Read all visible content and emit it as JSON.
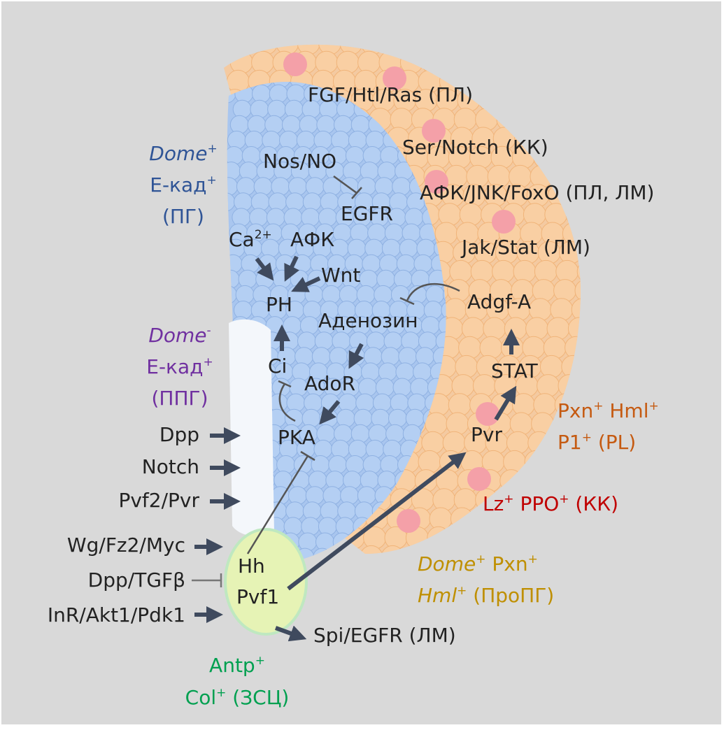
{
  "colors": {
    "background": "#d9d9d9",
    "arrow": "#3f4a5e",
    "inhibit": "#666666",
    "ph_zone": "#2f5496",
    "pph_zone": "#7030a0",
    "plasmatocyte": "#c55a11",
    "crystal_cell": "#c00000",
    "progenitor": "#bf8f00",
    "niche": "#00a050"
  },
  "pathways_outer": {
    "fgf": "FGF/Htl/Ras (ПЛ)",
    "notch": "Ser/Notch (КК)",
    "ros": "АФК/JNK/FoxO (ПЛ, ЛМ)",
    "jak": "Jak/Stat (ЛМ)"
  },
  "zones": {
    "ph": {
      "line1": "Dome",
      "line1_sup": "+",
      "line2": "Е-кад",
      "line2_sup": "+",
      "line3": "(ПГ)"
    },
    "pph": {
      "line1": "Dome",
      "line1_sup": "-",
      "line2": "Е-кад",
      "line2_sup": "+",
      "line3": "(ППГ)"
    },
    "pl": {
      "a": "Pxn",
      "a_sup": "+",
      "b": "Hml",
      "b_sup": "+",
      "c": "P1",
      "c_sup": "+",
      "d": "(PL)"
    },
    "cc": {
      "a": "Lz",
      "a_sup": "+",
      "b": "PPO",
      "b_sup": "+",
      "c": "(КК)"
    },
    "proph": {
      "a": "Dome",
      "a_sup": "+",
      "b": "Pxn",
      "b_sup": "+",
      "c": "Hml",
      "c_sup": "+",
      "d": "(ПроПГ)"
    },
    "niche": {
      "a": "Antp",
      "a_sup": "+",
      "b": "Col",
      "b_sup": "+",
      "c": "(ЗСЦ)"
    }
  },
  "nodes": {
    "nos": "Nos/NO",
    "egfr": "EGFR",
    "ca": "Ca",
    "ca_sup": "2+",
    "afk": "АФК",
    "wnt": "Wnt",
    "ph": "PH",
    "adenosine": "Аденозин",
    "adgf": "Adgf-A",
    "ci": "Ci",
    "stat": "STAT",
    "ador": "AdoR",
    "pka": "PKA",
    "pvr": "Pvr",
    "hh": "Hh",
    "pvf1": "Pvf1",
    "spi": "Spi/EGFR (ЛМ)"
  },
  "inputs_left": {
    "dpp": "Dpp",
    "notch": "Notch",
    "pvf2": "Pvf2/Pvr",
    "wg": "Wg/Fz2/Myc",
    "tgf": "Dpp/TGFβ",
    "inr": "InR/Akt1/Pdk1"
  }
}
